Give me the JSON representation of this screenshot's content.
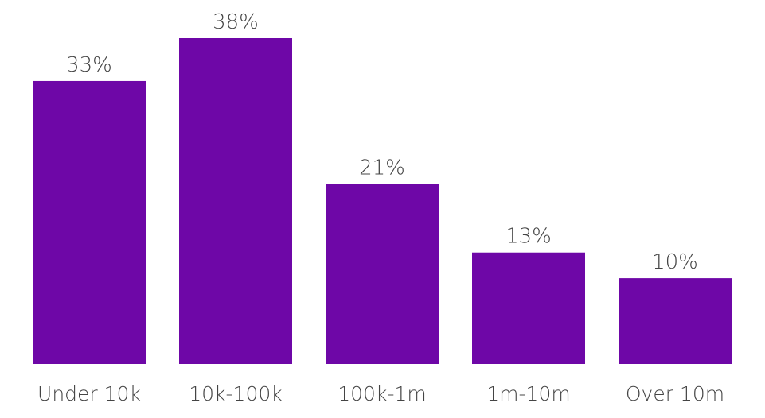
{
  "chart_data": {
    "type": "bar",
    "categories": [
      "Under 10k",
      "10k-100k",
      "100k-1m",
      "1m-10m",
      "Over 10m"
    ],
    "values": [
      33,
      38,
      21,
      13,
      10
    ],
    "value_labels": [
      "33%",
      "38%",
      "21%",
      "13%",
      "10%"
    ],
    "title": "",
    "xlabel": "",
    "ylabel": "",
    "ylim": [
      0,
      38
    ],
    "grid": false,
    "legend": "none",
    "bar_color": "#6E07A7"
  }
}
